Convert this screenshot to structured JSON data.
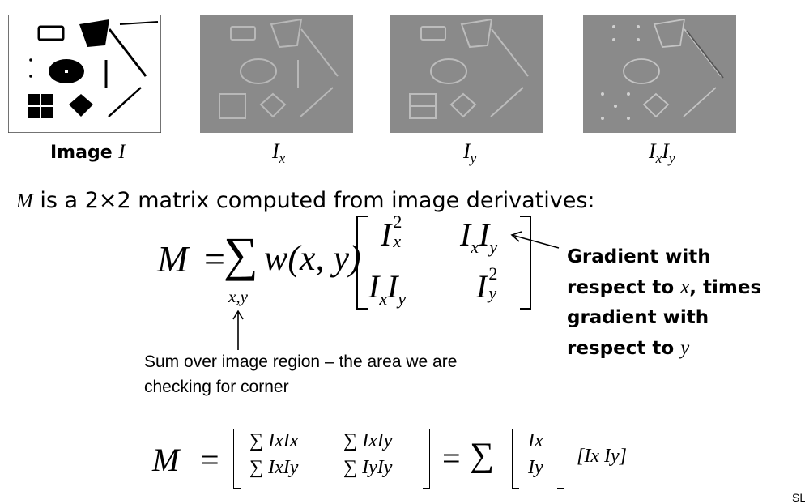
{
  "panels": [
    {
      "caption_prefix": "Image ",
      "caption_symbol": "I"
    },
    {
      "caption_symbol": "I",
      "caption_sub": "x"
    },
    {
      "caption_symbol": "I",
      "caption_sub": "y"
    },
    {
      "caption_symbol_1": "I",
      "caption_sub_1": "x",
      "caption_symbol_2": "I",
      "caption_sub_2": "y"
    }
  ],
  "intro": {
    "symbol": "M",
    "text": " is a 2×2 matrix computed from image derivatives:"
  },
  "equation1": {
    "lhs": "M",
    "equals": "=",
    "sum": "∑",
    "sum_index": "x,y",
    "weight": "w(x, y)",
    "m11": "I",
    "m11_sub": "x",
    "m11_sup": "2",
    "m12a": "I",
    "m12a_sub": "x",
    "m12b": "I",
    "m12b_sub": "y",
    "m21a": "I",
    "m21a_sub": "x",
    "m21b": "I",
    "m21b_sub": "y",
    "m22": "I",
    "m22_sub": "y",
    "m22_sup": "2"
  },
  "annotation_gradient": {
    "line1": "Gradient with",
    "line2_prefix": "respect to ",
    "line2_var": "x",
    "line2_suffix": ", times",
    "line3": "gradient with",
    "line4_prefix": "respect to ",
    "line4_var": "y"
  },
  "annotation_sum": {
    "line1": "Sum over image region – the area we are",
    "line2": "checking for corner"
  },
  "equation2": {
    "lhs": "M",
    "equals": "=",
    "a11": "∑ IxIx",
    "a12": "∑ IxIy",
    "a21": "∑ IxIy",
    "a22": "∑ IyIy",
    "equals2": "=",
    "sum": "∑",
    "v1": "Ix",
    "v2": "Iy",
    "row": "[Ix Iy]"
  },
  "footer": {
    "slide_mark": "SL"
  }
}
